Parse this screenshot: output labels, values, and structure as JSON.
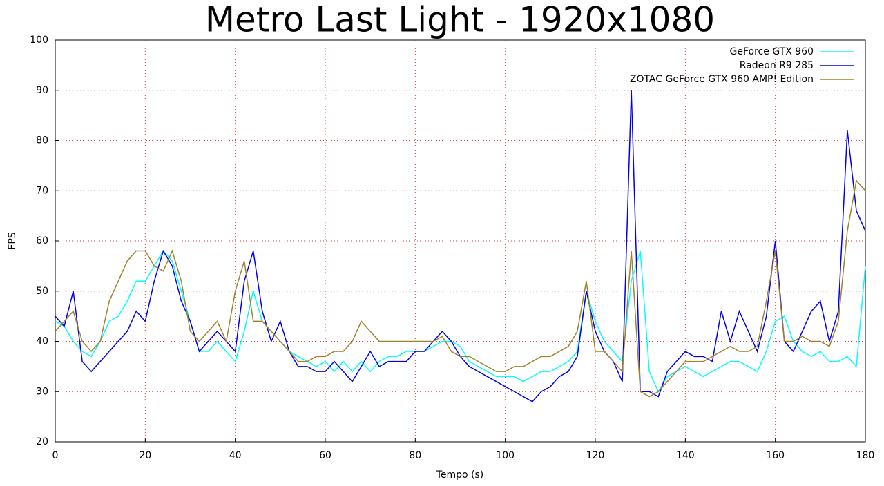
{
  "chart_data": {
    "type": "line",
    "title": "Metro Last Light - 1920x1080",
    "xlabel": "Tempo (s)",
    "ylabel": "FPS",
    "x": [
      0,
      2,
      4,
      6,
      8,
      10,
      12,
      14,
      16,
      18,
      20,
      22,
      24,
      26,
      28,
      30,
      32,
      34,
      36,
      38,
      40,
      42,
      44,
      46,
      48,
      50,
      52,
      54,
      56,
      58,
      60,
      62,
      64,
      66,
      68,
      70,
      72,
      74,
      76,
      78,
      80,
      82,
      84,
      86,
      88,
      90,
      92,
      94,
      96,
      98,
      100,
      102,
      104,
      106,
      108,
      110,
      112,
      114,
      116,
      118,
      120,
      122,
      124,
      126,
      128,
      130,
      132,
      134,
      136,
      138,
      140,
      142,
      144,
      146,
      148,
      150,
      152,
      154,
      156,
      158,
      160,
      162,
      164,
      166,
      168,
      170,
      172,
      174,
      176,
      178,
      180
    ],
    "series": [
      {
        "name": "GeForce GTX 960",
        "color": "#00ffff",
        "values": [
          44,
          43,
          40,
          38,
          37,
          40,
          44,
          45,
          48,
          52,
          52,
          55,
          58,
          56,
          50,
          44,
          38,
          38,
          40,
          38,
          36,
          42,
          50,
          44,
          42,
          40,
          38,
          37,
          36,
          35,
          36,
          34,
          36,
          34,
          36,
          34,
          36,
          37,
          37,
          38,
          38,
          38,
          39,
          40,
          40,
          39,
          36,
          35,
          34,
          33,
          33,
          33,
          32,
          33,
          34,
          34,
          35,
          36,
          38,
          50,
          44,
          40,
          38,
          36,
          52,
          58,
          34,
          30,
          33,
          34,
          35,
          34,
          33,
          34,
          35,
          36,
          36,
          35,
          34,
          38,
          44,
          45,
          40,
          38,
          37,
          38,
          36,
          36,
          37,
          35,
          55
        ]
      },
      {
        "name": "Radeon R9 285",
        "color": "#0000ee",
        "values": [
          45,
          43,
          50,
          36,
          34,
          36,
          38,
          40,
          42,
          46,
          44,
          52,
          58,
          55,
          48,
          44,
          38,
          40,
          42,
          40,
          38,
          52,
          58,
          46,
          40,
          44,
          38,
          35,
          35,
          34,
          34,
          36,
          34,
          32,
          35,
          38,
          35,
          36,
          36,
          36,
          38,
          38,
          40,
          42,
          40,
          37,
          35,
          34,
          33,
          32,
          31,
          30,
          29,
          28,
          30,
          31,
          33,
          34,
          37,
          50,
          42,
          38,
          36,
          32,
          90,
          30,
          30,
          29,
          34,
          36,
          38,
          37,
          37,
          36,
          46,
          40,
          46,
          42,
          38,
          45,
          60,
          40,
          38,
          42,
          46,
          48,
          40,
          46,
          82,
          66,
          62
        ]
      },
      {
        "name": "ZOTAC GeForce GTX 960 AMP! Edition",
        "color": "#a0822a",
        "values": [
          42,
          44,
          46,
          40,
          38,
          40,
          48,
          52,
          56,
          58,
          58,
          55,
          54,
          58,
          52,
          42,
          40,
          42,
          44,
          40,
          50,
          56,
          44,
          44,
          42,
          40,
          38,
          36,
          36,
          37,
          37,
          38,
          38,
          40,
          44,
          42,
          40,
          40,
          40,
          40,
          40,
          40,
          40,
          41,
          38,
          37,
          37,
          36,
          35,
          34,
          34,
          35,
          35,
          36,
          37,
          37,
          38,
          39,
          42,
          52,
          38,
          38,
          36,
          34,
          58,
          30,
          29,
          30,
          32,
          34,
          36,
          36,
          36,
          37,
          38,
          39,
          38,
          38,
          39,
          48,
          58,
          40,
          40,
          41,
          40,
          40,
          39,
          44,
          62,
          72,
          70
        ]
      }
    ],
    "xlim": [
      0,
      180
    ],
    "xticks": [
      0,
      20,
      40,
      60,
      80,
      100,
      120,
      140,
      160,
      180
    ],
    "ylim": [
      20,
      100
    ],
    "yticks": [
      20,
      30,
      40,
      50,
      60,
      70,
      80,
      90,
      100
    ],
    "grid": true,
    "legend": "upper right"
  }
}
